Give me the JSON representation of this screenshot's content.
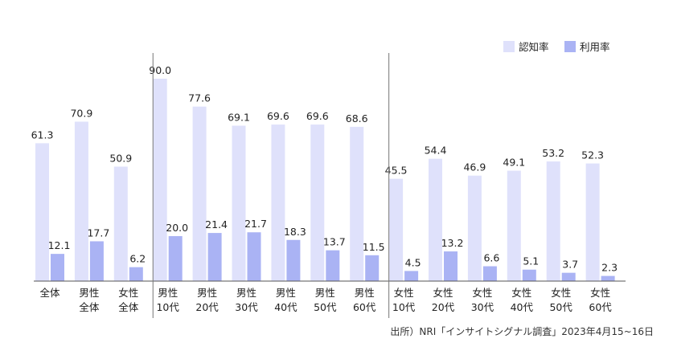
{
  "chart_data": {
    "type": "bar",
    "categories": [
      [
        "全体"
      ],
      [
        "男性",
        "全体"
      ],
      [
        "女性",
        "全体"
      ],
      [
        "男性",
        "10代"
      ],
      [
        "男性",
        "20代"
      ],
      [
        "男性",
        "30代"
      ],
      [
        "男性",
        "40代"
      ],
      [
        "男性",
        "50代"
      ],
      [
        "男性",
        "60代"
      ],
      [
        "女性",
        "10代"
      ],
      [
        "女性",
        "20代"
      ],
      [
        "女性",
        "30代"
      ],
      [
        "女性",
        "40代"
      ],
      [
        "女性",
        "50代"
      ],
      [
        "女性",
        "60代"
      ]
    ],
    "series": [
      {
        "name": "認知率",
        "color": "#dfe1fb",
        "values": [
          61.3,
          70.9,
          50.9,
          90.0,
          77.6,
          69.1,
          69.6,
          69.6,
          68.6,
          45.5,
          54.4,
          46.9,
          49.1,
          53.2,
          52.3
        ]
      },
      {
        "name": "利用率",
        "color": "#aab3f4",
        "values": [
          12.1,
          17.7,
          6.2,
          20.0,
          21.4,
          21.7,
          18.3,
          13.7,
          11.5,
          4.5,
          13.2,
          6.6,
          5.1,
          3.7,
          2.3
        ]
      }
    ],
    "ylim": [
      0,
      100
    ],
    "grid": false,
    "legend_position": "top-right",
    "group_separators_after_index": [
      2,
      8
    ]
  },
  "source_note": "出所）NRI「インサイトシグナル調査」2023年4月15~16日"
}
